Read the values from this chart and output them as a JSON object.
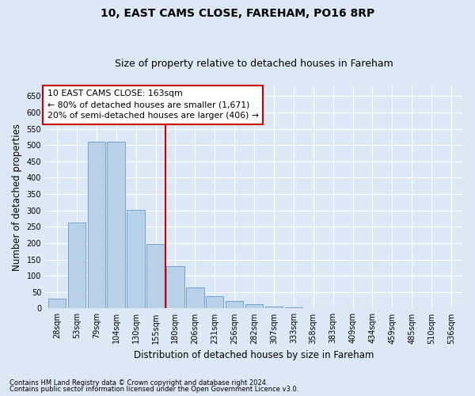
{
  "title": "10, EAST CAMS CLOSE, FAREHAM, PO16 8RP",
  "subtitle": "Size of property relative to detached houses in Fareham",
  "xlabel": "Distribution of detached houses by size in Fareham",
  "ylabel": "Number of detached properties",
  "footnote1": "Contains HM Land Registry data © Crown copyright and database right 2024.",
  "footnote2": "Contains public sector information licensed under the Open Government Licence v3.0.",
  "categories": [
    "28sqm",
    "53sqm",
    "79sqm",
    "104sqm",
    "130sqm",
    "155sqm",
    "180sqm",
    "206sqm",
    "231sqm",
    "256sqm",
    "282sqm",
    "307sqm",
    "333sqm",
    "358sqm",
    "383sqm",
    "409sqm",
    "434sqm",
    "459sqm",
    "485sqm",
    "510sqm",
    "536sqm"
  ],
  "values": [
    30,
    263,
    511,
    511,
    302,
    197,
    130,
    65,
    38,
    22,
    13,
    7,
    4,
    2,
    1,
    1,
    1,
    1,
    1,
    1,
    1
  ],
  "bar_color": "#b8d0e8",
  "bar_edge_color": "#6699cc",
  "vline_color": "#cc0000",
  "annotation_text": "10 EAST CAMS CLOSE: 163sqm\n← 80% of detached houses are smaller (1,671)\n20% of semi-detached houses are larger (406) →",
  "annotation_box_facecolor": "#ffffff",
  "annotation_box_edgecolor": "#cc0000",
  "ylim": [
    0,
    680
  ],
  "yticks": [
    0,
    50,
    100,
    150,
    200,
    250,
    300,
    350,
    400,
    450,
    500,
    550,
    600,
    650
  ],
  "bg_color": "#dce8f5",
  "fig_bg_color": "#dce8f5",
  "title_fontsize": 10,
  "subtitle_fontsize": 9,
  "tick_fontsize": 7,
  "label_fontsize": 8.5,
  "footnote_fontsize": 6
}
